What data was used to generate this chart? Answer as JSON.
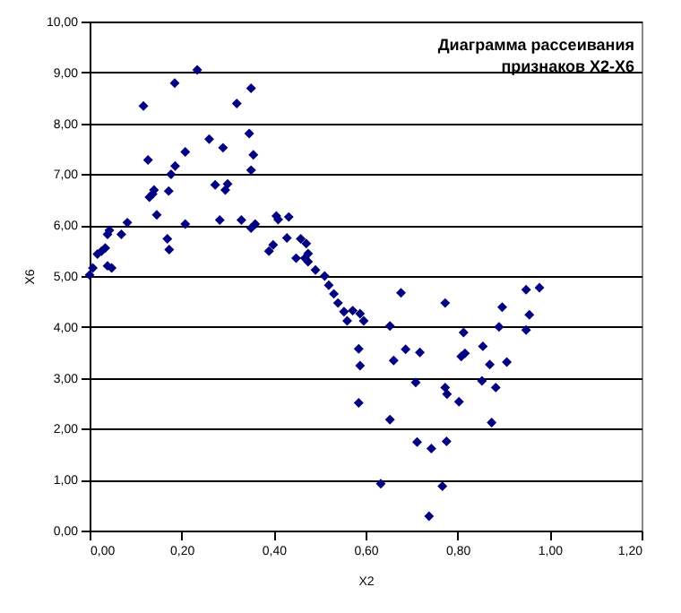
{
  "chart_data": {
    "type": "scatter",
    "title": "Диаграмма рассеивания признаков X2-X6",
    "xlabel": "X2",
    "ylabel": "X6",
    "xlim": [
      0,
      1.2
    ],
    "xticks": [
      {
        "value": 0,
        "label": "0,00"
      },
      {
        "value": 0.2,
        "label": "0,20"
      },
      {
        "value": 0.4,
        "label": "0,40"
      },
      {
        "value": 0.6,
        "label": "0,60"
      },
      {
        "value": 0.8,
        "label": "0,80"
      },
      {
        "value": 1,
        "label": "1,00"
      },
      {
        "value": 1.2,
        "label": "1,20"
      }
    ],
    "ylim": [
      0,
      10
    ],
    "yticks": [
      {
        "value": 0,
        "label": "0,00"
      },
      {
        "value": 1,
        "label": "1,00"
      },
      {
        "value": 2,
        "label": "2,00"
      },
      {
        "value": 3,
        "label": "3,00"
      },
      {
        "value": 4,
        "label": "4,00"
      },
      {
        "value": 5,
        "label": "5,00"
      },
      {
        "value": 6,
        "label": "6,00"
      },
      {
        "value": 7,
        "label": "7,00"
      },
      {
        "value": 8,
        "label": "8,00"
      },
      {
        "value": 9,
        "label": "9,00"
      },
      {
        "value": 10,
        "label": "10,00"
      }
    ],
    "grid": "y",
    "marker": "diamond",
    "legend": false,
    "series": [
      {
        "color": "#000080",
        "x": [
          0,
          0.007,
          0.017,
          0.026,
          0.034,
          0.039,
          0.043,
          0.039,
          0.048,
          0.069,
          0.082,
          0.117,
          0.127,
          0.13,
          0.137,
          0.14,
          0.146,
          0.169,
          0.173,
          0.172,
          0.177,
          0.185,
          0.186,
          0.208,
          0.208,
          0.234,
          0.26,
          0.273,
          0.283,
          0.29,
          0.295,
          0.3,
          0.32,
          0.33,
          0.347,
          0.351,
          0.351,
          0.356,
          0.351,
          0.36,
          0.39,
          0.399,
          0.406,
          0.41,
          0.433,
          0.429,
          0.449,
          0.459,
          0.468,
          0.471,
          0.475,
          0.475,
          0.491,
          0.511,
          0.52,
          0.531,
          0.54,
          0.553,
          0.56,
          0.572,
          0.588,
          0.596,
          0.585,
          0.588,
          0.585,
          0.633,
          0.653,
          0.653,
          0.661,
          0.677,
          0.687,
          0.709,
          0.712,
          0.718,
          0.743,
          0.738,
          0.767,
          0.773,
          0.773,
          0.777,
          0.776,
          0.803,
          0.808,
          0.816,
          0.813,
          0.855,
          0.853,
          0.87,
          0.874,
          0.883,
          0.89,
          0.897,
          0.907,
          0.949,
          0.949,
          0.956,
          0.978
        ],
        "values": [
          5.02,
          5.16,
          5.43,
          5.49,
          5.55,
          5.82,
          5.9,
          5.2,
          5.16,
          5.82,
          6.05,
          8.34,
          7.28,
          6.55,
          6.61,
          6.69,
          6.2,
          5.73,
          5.52,
          6.67,
          7.0,
          8.79,
          7.16,
          7.44,
          6.02,
          9.05,
          7.69,
          6.79,
          6.1,
          7.52,
          6.69,
          6.81,
          8.39,
          6.1,
          7.8,
          8.69,
          7.08,
          7.38,
          5.94,
          6.02,
          5.49,
          5.61,
          6.18,
          6.11,
          6.16,
          5.75,
          5.35,
          5.73,
          5.35,
          5.64,
          5.28,
          5.44,
          5.12,
          5.0,
          4.82,
          4.65,
          4.47,
          4.3,
          4.12,
          4.32,
          4.26,
          4.12,
          3.57,
          3.24,
          2.51,
          0.92,
          4.02,
          2.18,
          3.34,
          4.67,
          3.56,
          2.91,
          1.74,
          3.5,
          1.61,
          0.28,
          0.87,
          4.47,
          2.81,
          2.68,
          1.75,
          2.53,
          3.42,
          3.48,
          3.89,
          3.62,
          2.94,
          3.26,
          2.12,
          2.81,
          4.0,
          4.39,
          3.31,
          4.73,
          3.94,
          4.24,
          4.77
        ]
      }
    ]
  }
}
